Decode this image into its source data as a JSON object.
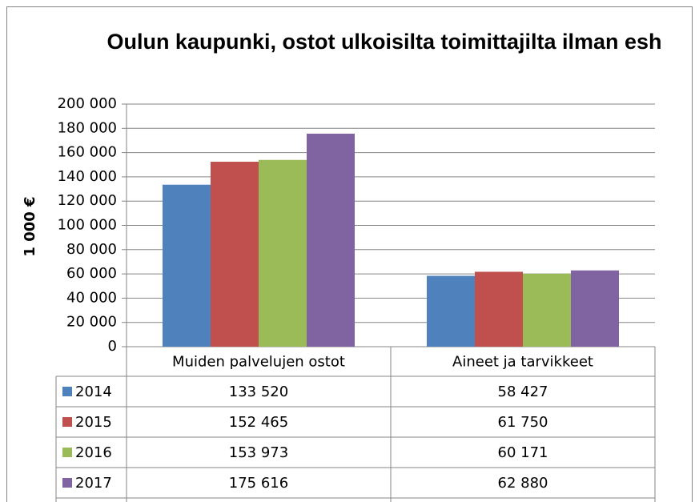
{
  "chart_data": {
    "type": "bar",
    "title": "Oulun kaupunki, ostot ulkoisilta toimittajilta ilman esh",
    "y_label": "1 000 €",
    "categories": [
      "Muiden palvelujen ostot",
      "Aineet ja tarvikkeet"
    ],
    "series": [
      {
        "name": "2014",
        "color": "#4f81bd",
        "values": [
          133520,
          58427
        ],
        "value_labels": [
          "133 520",
          "58 427"
        ]
      },
      {
        "name": "2015",
        "color": "#c0504d",
        "values": [
          152465,
          61750
        ],
        "value_labels": [
          "152 465",
          "61 750"
        ]
      },
      {
        "name": "2016",
        "color": "#9bbb59",
        "values": [
          153973,
          60171
        ],
        "value_labels": [
          "153 973",
          "60 171"
        ]
      },
      {
        "name": "2017",
        "color": "#8064a2",
        "values": [
          175616,
          62880
        ],
        "value_labels": [
          "175 616",
          "62 880"
        ]
      }
    ],
    "ylim": [
      0,
      200000
    ],
    "yticks": [
      0,
      {
        "value": 20000,
        "label": "20 000"
      },
      {
        "value": 40000,
        "label": "40 000"
      },
      {
        "value": 60000,
        "label": "60 000"
      },
      {
        "value": 80000,
        "label": "80 000"
      },
      {
        "value": 100000,
        "label": "100 000"
      },
      {
        "value": 120000,
        "label": "120 000"
      },
      {
        "value": 140000,
        "label": "140 000"
      },
      {
        "value": 160000,
        "label": "160 000"
      },
      {
        "value": 180000,
        "label": "180 000"
      },
      {
        "value": 200000,
        "label": "200 000"
      }
    ],
    "grid": true
  }
}
